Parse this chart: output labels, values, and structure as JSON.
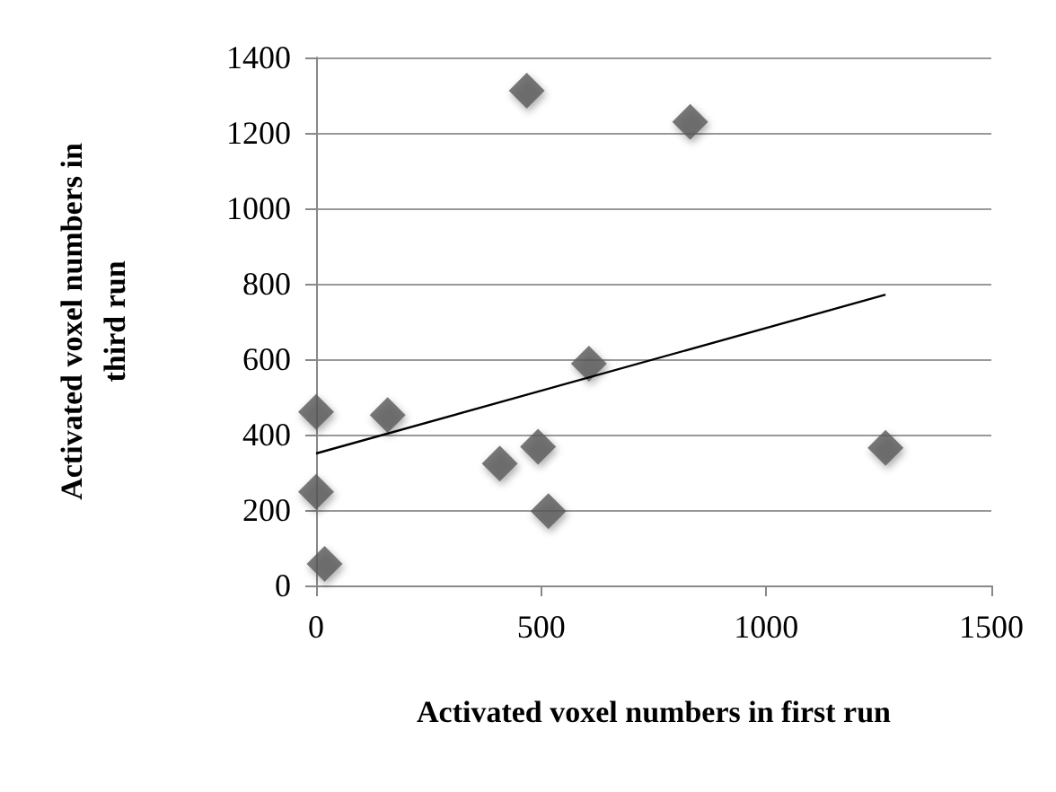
{
  "chart_data": {
    "type": "scatter",
    "xlabel": "Activated voxel numbers in first run",
    "ylabel": "Activated voxel numbers in\nthird run",
    "x": [
      0,
      0,
      19,
      159,
      408,
      493,
      516,
      606,
      1265,
      468,
      831
    ],
    "series": [
      {
        "color": "#595959",
        "values": [
          460,
          248,
          57,
          452,
          323,
          368,
          197,
          588,
          365,
          1312,
          1229
        ]
      },
      {
        "type": "line",
        "color": "#000000",
        "x": [
          0,
          1265
        ],
        "values": [
          350,
          771
        ],
        "marker": "none"
      }
    ],
    "xlim": [
      0,
      1500
    ],
    "xticks": [
      0,
      500,
      1000,
      1500
    ],
    "ylim": [
      0,
      1400
    ],
    "yticks": [
      0,
      200,
      400,
      600,
      800,
      1000,
      1200,
      1400
    ],
    "grid": "y",
    "marker": "diamond"
  }
}
